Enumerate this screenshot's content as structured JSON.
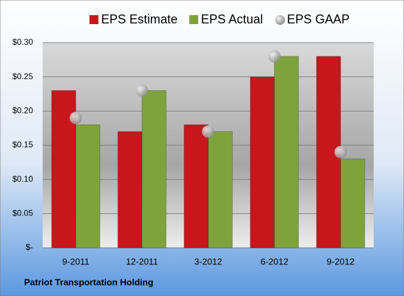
{
  "chart_data": {
    "type": "bar",
    "title": "Patriot Transportation Holding",
    "categories": [
      "9-2011",
      "12-2011",
      "3-2012",
      "6-2012",
      "9-2012"
    ],
    "series": [
      {
        "name": "EPS Estimate",
        "color": "#c8161d",
        "values": [
          0.23,
          0.17,
          0.18,
          0.25,
          0.28
        ]
      },
      {
        "name": "EPS Actual",
        "color": "#7fa33c",
        "values": [
          0.18,
          0.23,
          0.17,
          0.28,
          0.13
        ]
      },
      {
        "name": "EPS GAAP",
        "type": "scatter",
        "color": "#a6a6a6",
        "values": [
          0.19,
          0.23,
          0.17,
          0.28,
          0.14
        ]
      }
    ],
    "ylim": [
      0,
      0.3
    ],
    "yticks": [
      {
        "value": 0,
        "label": "$-"
      },
      {
        "value": 0.05,
        "label": "$0.05"
      },
      {
        "value": 0.1,
        "label": "$0.10"
      },
      {
        "value": 0.15,
        "label": "$0.15"
      },
      {
        "value": 0.2,
        "label": "$0.20"
      },
      {
        "value": 0.25,
        "label": "$0.25"
      },
      {
        "value": 0.3,
        "label": "$0.30"
      }
    ],
    "grid": true,
    "legend": "top"
  }
}
